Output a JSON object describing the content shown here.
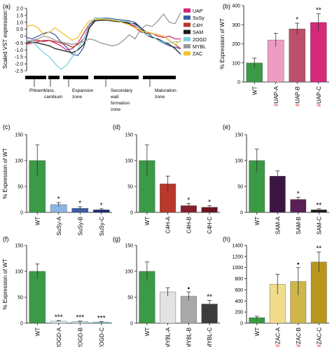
{
  "chart_data": [
    {
      "panel": "(a)",
      "type": "line",
      "ylabel": "Scaled VST expression",
      "ylim": [
        -2.5,
        2.0
      ],
      "yticks": [
        "2.0",
        "1.5",
        "1.0",
        "0.5",
        "0",
        "-0.5",
        "-1.0",
        "-1.5",
        "-2.0",
        "-2.5"
      ],
      "x": [
        0,
        1,
        2,
        3,
        4,
        5,
        6,
        7,
        8,
        9,
        10,
        11,
        12,
        13,
        14,
        15,
        16,
        17,
        18,
        19,
        20,
        21,
        22,
        23,
        24,
        25,
        26,
        27
      ],
      "zones": [
        "Phloem",
        "Vasc. cambium",
        "Expansion zone",
        "Secondary wall formation zone",
        "Maturation zone"
      ],
      "series": [
        {
          "name": "UAP",
          "color": "#d6297a",
          "values": [
            -0.6,
            -0.5,
            -0.4,
            -0.3,
            -0.3,
            -0.5,
            -0.7,
            -1.0,
            -0.9,
            -0.5,
            0.2,
            0.9,
            1.2,
            1.25,
            1.2,
            1.15,
            1.1,
            1.0,
            0.9,
            0.7,
            0.5,
            0.3,
            0.2,
            0.0,
            -0.1,
            0.0,
            -0.2,
            -0.2
          ]
        },
        {
          "name": "SuSy",
          "color": "#3d5ba6",
          "values": [
            -0.1,
            -0.2,
            0.0,
            0.2,
            0.3,
            0.1,
            -0.4,
            -0.8,
            -1.3,
            -1.4,
            -0.8,
            0.6,
            1.2,
            1.3,
            1.3,
            1.25,
            1.2,
            1.15,
            1.1,
            1.0,
            0.6,
            0.3,
            0.0,
            -0.3,
            -0.5,
            -0.7,
            -0.8,
            -0.9
          ]
        },
        {
          "name": "C4H",
          "color": "#b8382b",
          "values": [
            -0.5,
            -0.3,
            -0.3,
            -0.4,
            -0.3,
            -0.4,
            -0.5,
            -0.6,
            -0.8,
            -0.6,
            -0.2,
            0.8,
            1.3,
            1.3,
            1.25,
            1.2,
            1.1,
            1.0,
            0.9,
            0.6,
            0.3,
            0.2,
            0.2,
            0.1,
            0.0,
            -0.3,
            -0.6,
            -0.9
          ]
        },
        {
          "name": "SAM",
          "color": "#1a1a1a",
          "values": [
            -0.5,
            -0.4,
            -0.5,
            -0.6,
            -0.7,
            -0.9,
            -1.0,
            -1.1,
            -1.2,
            -1.0,
            -0.6,
            0.6,
            1.1,
            1.15,
            1.15,
            1.1,
            1.05,
            1.0,
            0.95,
            0.9,
            0.6,
            0.1,
            -0.1,
            -0.2,
            -0.4,
            -0.6,
            -0.9,
            -1.3
          ]
        },
        {
          "name": "2OGD",
          "color": "#7fd0dd",
          "values": [
            -0.3,
            -0.4,
            -0.8,
            -1.2,
            -1.5,
            -2.0,
            -2.4,
            -2.1,
            -1.5,
            -0.9,
            -0.2,
            0.9,
            1.3,
            1.3,
            1.25,
            1.2,
            1.15,
            1.1,
            1.0,
            0.8,
            0.4,
            0.1,
            0.0,
            -0.3,
            -0.4,
            -0.5,
            -0.4,
            -0.4
          ]
        },
        {
          "name": "MYBL",
          "color": "#999999",
          "values": [
            -0.4,
            -0.3,
            -0.2,
            0.0,
            -0.1,
            -0.3,
            -0.4,
            -0.5,
            -0.6,
            -0.5,
            -0.4,
            -0.2,
            -0.3,
            -0.5,
            -0.6,
            -0.7,
            -0.6,
            -0.3,
            0.1,
            -0.2,
            0.5,
            0.8,
            0.7,
            1.1,
            1.6,
            1.0,
            0.9,
            1.7
          ]
        },
        {
          "name": "ZAC",
          "color": "#f1c232",
          "values": [
            0.7,
            0.8,
            0.6,
            0.1,
            0.3,
            0.6,
            0.3,
            0.0,
            -0.3,
            -0.1,
            0.6,
            1.1,
            1.2,
            1.25,
            1.2,
            1.15,
            1.1,
            0.95,
            0.8,
            0.6,
            0.4,
            0.3,
            0.2,
            0.1,
            0.0,
            -0.3,
            -0.6,
            -0.3
          ]
        }
      ]
    },
    {
      "panel": "(b)",
      "type": "bar",
      "ylabel": "% Expression of WT",
      "ylim": [
        0,
        400
      ],
      "yticks": [
        "0",
        "100",
        "200",
        "300",
        "400"
      ],
      "categories": [
        {
          "prefix": "",
          "label": "WT"
        },
        {
          "prefix": "#",
          "label": "UAP-A"
        },
        {
          "prefix": "#",
          "label": "UAP-B"
        },
        {
          "prefix": "#",
          "label": "UAP-C"
        }
      ],
      "values": [
        100,
        220,
        278,
        312
      ],
      "errors": [
        25,
        35,
        30,
        45
      ],
      "sig": [
        "",
        "",
        "*",
        "**"
      ],
      "colors": [
        "#3a9a45",
        "#ee9cc1",
        "#bb4f6c",
        "#d6297a"
      ]
    },
    {
      "panel": "(c)",
      "type": "bar",
      "ylabel": "% Expression of WT",
      "ylim": [
        0,
        150
      ],
      "yticks": [
        "0",
        "50",
        "100",
        "150"
      ],
      "categories": [
        {
          "prefix": "",
          "label": "WT"
        },
        {
          "prefix": "",
          "label": "SuSy-A"
        },
        {
          "prefix": "",
          "label": "SuSy-B"
        },
        {
          "prefix": "",
          "label": "SuSy-C"
        }
      ],
      "values": [
        100,
        15,
        8,
        5
      ],
      "errors": [
        30,
        4,
        3,
        2
      ],
      "sig": [
        "",
        "*",
        "*",
        "*"
      ],
      "colors": [
        "#3a9a45",
        "#8db4e2",
        "#3d5ba6",
        "#1f2a77"
      ]
    },
    {
      "panel": "(d)",
      "type": "bar",
      "ylabel": "",
      "ylim": [
        0,
        150
      ],
      "yticks": [
        "0",
        "50",
        "100",
        "150"
      ],
      "categories": [
        {
          "prefix": "",
          "label": "WT"
        },
        {
          "prefix": "",
          "label": "C4H-A"
        },
        {
          "prefix": "",
          "label": "C4H-B"
        },
        {
          "prefix": "",
          "label": "C4H-C"
        }
      ],
      "values": [
        100,
        55,
        13,
        10
      ],
      "errors": [
        30,
        15,
        4,
        3
      ],
      "sig": [
        "",
        "",
        "*",
        "*"
      ],
      "colors": [
        "#3a9a45",
        "#b8382b",
        "#8b1e2d",
        "#6b1420"
      ]
    },
    {
      "panel": "(e)",
      "type": "bar",
      "ylabel": "",
      "ylim": [
        0,
        150
      ],
      "yticks": [
        "0",
        "50",
        "100",
        "150"
      ],
      "categories": [
        {
          "prefix": "",
          "label": "WT"
        },
        {
          "prefix": "",
          "label": "SAM-A"
        },
        {
          "prefix": "",
          "label": "SAM-B"
        },
        {
          "prefix": "",
          "label": "SAM-C"
        }
      ],
      "values": [
        100,
        70,
        25,
        5
      ],
      "errors": [
        22,
        10,
        4,
        2
      ],
      "sig": [
        "",
        "",
        "*",
        "**"
      ],
      "colors": [
        "#3a9a45",
        "#3b1543",
        "#5a1f55",
        "#1a1a1a"
      ]
    },
    {
      "panel": "(f)",
      "type": "bar",
      "ylabel": "% Expression of WT",
      "ylim": [
        0,
        150
      ],
      "yticks": [
        "0",
        "50",
        "100",
        "150"
      ],
      "categories": [
        {
          "prefix": "",
          "label": "WT"
        },
        {
          "prefix": "",
          "label": "2OGD-A"
        },
        {
          "prefix": "",
          "label": "2OGD-B"
        },
        {
          "prefix": "",
          "label": "2OGD-C"
        }
      ],
      "values": [
        100,
        4,
        3,
        2
      ],
      "errors": [
        14,
        1,
        1,
        1
      ],
      "sig": [
        "",
        "***",
        "***",
        "***"
      ],
      "colors": [
        "#3a9a45",
        "#d9f0f3",
        "#b5e3ea",
        "#7fd0dd"
      ]
    },
    {
      "panel": "(g)",
      "type": "bar",
      "ylabel": "",
      "ylim": [
        0,
        150
      ],
      "yticks": [
        "0",
        "50",
        "100",
        "150"
      ],
      "categories": [
        {
          "prefix": "",
          "label": "WT"
        },
        {
          "prefix": "",
          "label": "MYBL-A"
        },
        {
          "prefix": "",
          "label": "MYBL-B"
        },
        {
          "prefix": "",
          "label": "MYBL-C"
        }
      ],
      "values": [
        100,
        60,
        52,
        37
      ],
      "errors": [
        18,
        8,
        8,
        7
      ],
      "sig": [
        "",
        "",
        "•",
        "**"
      ],
      "colors": [
        "#3a9a45",
        "#e3e3e3",
        "#a9a9a9",
        "#3c3c3c"
      ]
    },
    {
      "panel": "(h)",
      "type": "bar",
      "ylabel": "",
      "ylim": [
        0,
        1400
      ],
      "yticks": [
        "0",
        "200",
        "400",
        "600",
        "800",
        "1000",
        "1200",
        "1400"
      ],
      "categories": [
        {
          "prefix": "",
          "label": "WT"
        },
        {
          "prefix": "#",
          "label": "ZAC-A"
        },
        {
          "prefix": "#",
          "label": "ZAC-B"
        },
        {
          "prefix": "#",
          "label": "ZAC-C"
        }
      ],
      "values": [
        100,
        700,
        750,
        1100
      ],
      "errors": [
        25,
        180,
        250,
        180
      ],
      "sig": [
        "",
        "",
        "•",
        "**"
      ],
      "colors": [
        "#3a9a45",
        "#f1dc8c",
        "#cfb64b",
        "#b8961e"
      ]
    }
  ]
}
